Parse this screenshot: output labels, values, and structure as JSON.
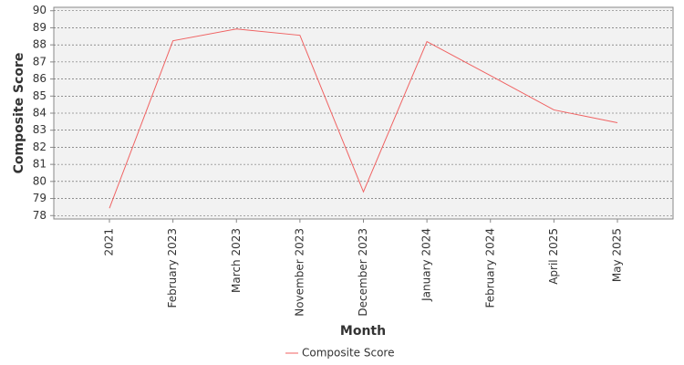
{
  "chart_data": {
    "type": "line",
    "x_label": "Month",
    "y_label": "Composite Score",
    "categories": [
      "2021",
      "February 2023",
      "March 2023",
      "November 2023",
      "December 2023",
      "January 2024",
      "February 2024",
      "April 2025",
      "May 2025"
    ],
    "series": [
      {
        "name": "Composite Score",
        "color": "#f06262",
        "values": [
          78.43,
          88.24,
          88.93,
          88.56,
          79.39,
          88.19,
          86.2,
          84.19,
          83.44
        ]
      }
    ],
    "ylim": [
      77.8,
      90.2
    ],
    "yticks": [
      78,
      79,
      80,
      81,
      82,
      83,
      84,
      85,
      86,
      87,
      88,
      89,
      90
    ],
    "grid": true,
    "legend": "bottom"
  }
}
